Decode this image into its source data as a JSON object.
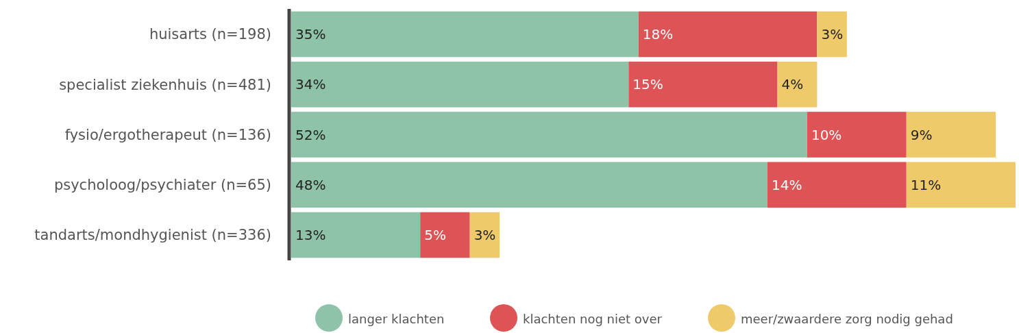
{
  "chart_data": {
    "type": "bar",
    "orientation": "horizontal",
    "stacked": true,
    "legend": "bottom",
    "categories": [
      "huisarts (n=198)",
      "specialist ziekenhuis (n=481)",
      "fysio/ergotherapeut (n=136)",
      "psycholoog/psychiater (n=65)",
      "tandarts/mondhygienist (n=336)"
    ],
    "series": [
      {
        "name": "langer klachten",
        "color": "#8fc3a8",
        "values": [
          35,
          34,
          52,
          48,
          13
        ],
        "value_labels": [
          "35%",
          "34%",
          "52%",
          "48%",
          "13%"
        ]
      },
      {
        "name": "klachten nog niet over",
        "color": "#dd5356",
        "values": [
          18,
          15,
          10,
          14,
          5
        ],
        "value_labels": [
          "18%",
          "15%",
          "10%",
          "14%",
          "5%"
        ]
      },
      {
        "name": "meer/zwaardere zorg nodig gehad",
        "color": "#efca6a",
        "values": [
          3,
          4,
          9,
          11,
          3
        ],
        "value_labels": [
          "3%",
          "4%",
          "9%",
          "11%",
          "3%"
        ]
      }
    ]
  }
}
